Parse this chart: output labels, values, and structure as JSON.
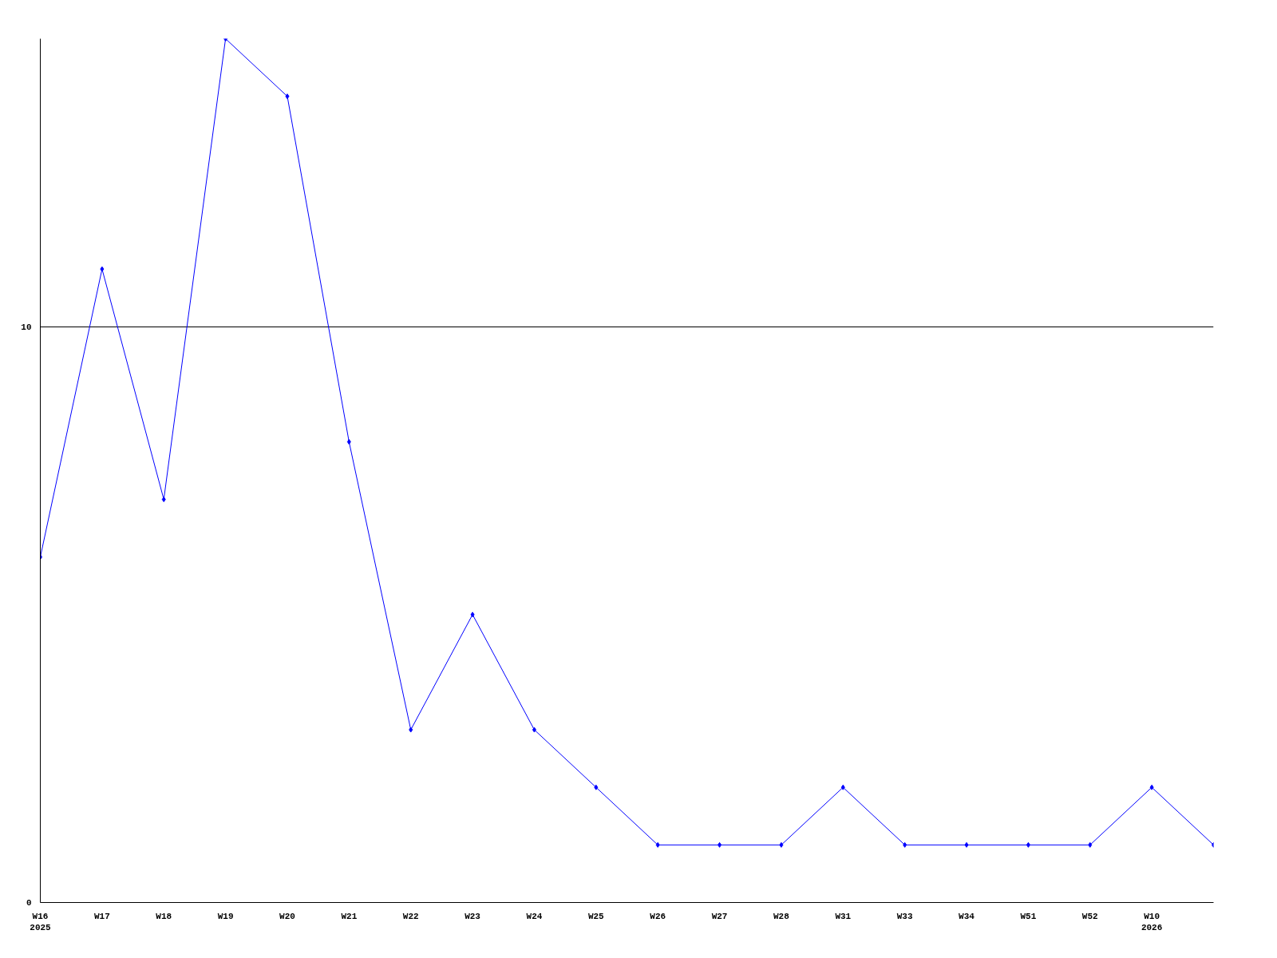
{
  "chart_data": {
    "type": "line",
    "categories": [
      "W16\n2025",
      "W17",
      "W18",
      "W19",
      "W20",
      "W21",
      "W22",
      "W23",
      "W24",
      "W25",
      "W26",
      "W27",
      "W28",
      "W31",
      "W33",
      "W34",
      "W51",
      "W52",
      "W10\n2026",
      null
    ],
    "series": [
      {
        "color": "#0000ff",
        "values": [
          6,
          11,
          7,
          15,
          14,
          8,
          3,
          5,
          3,
          2,
          1,
          1,
          1,
          2,
          1,
          1,
          1,
          1,
          2,
          1
        ]
      }
    ],
    "ylim": [
      0,
      15
    ],
    "yticks": [
      0,
      10
    ],
    "grid": "y",
    "marker": "diamond",
    "line_style": "solid"
  }
}
